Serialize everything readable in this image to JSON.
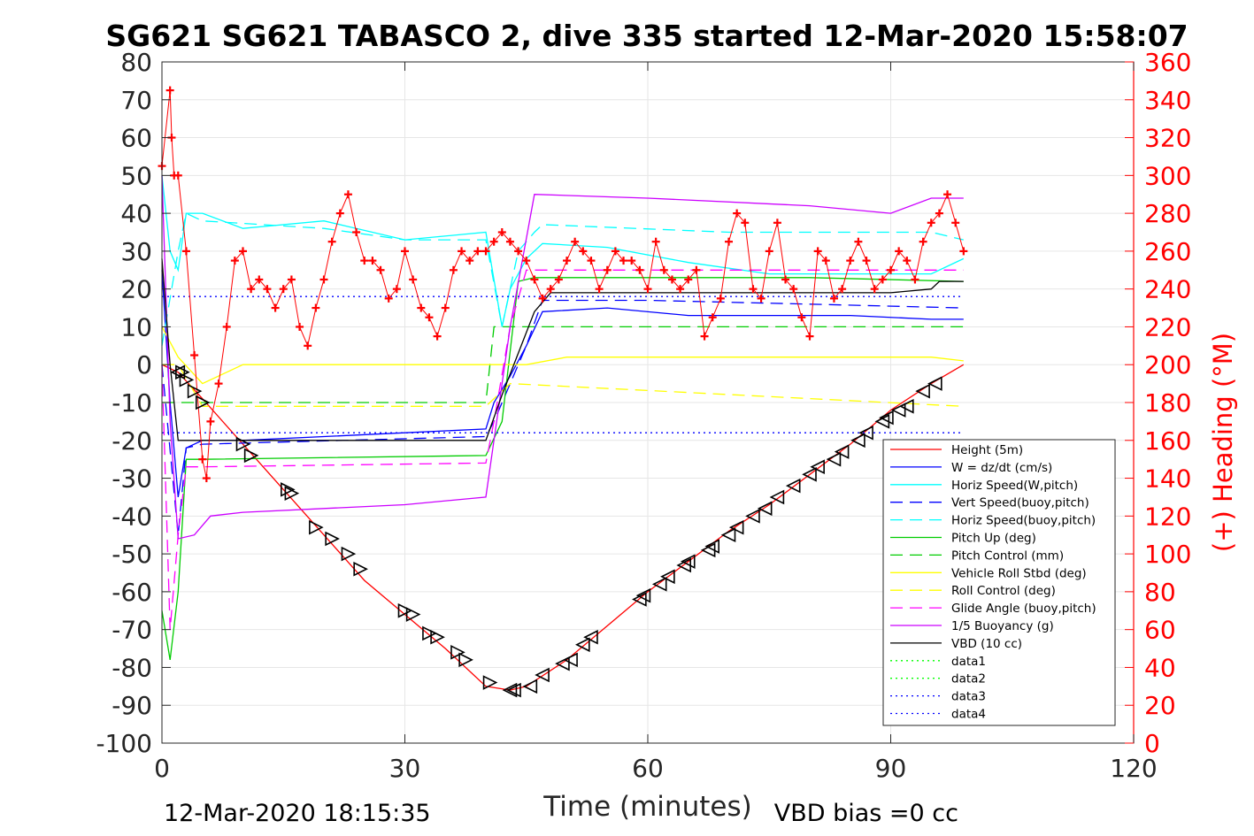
{
  "chart_data": {
    "type": "line",
    "title": "SG621 SG621 TABASCO 2, dive 335 started 12-Mar-2020 15:58:07",
    "xlabel": "Time (minutes)",
    "ylabel_right": "(+) Heading (°M)",
    "xlim": [
      0,
      120
    ],
    "ylim_left": [
      -100,
      80
    ],
    "ylim_right": [
      0,
      360
    ],
    "xticks": [
      "0",
      "30",
      "60",
      "90",
      "120"
    ],
    "yticks_left": [
      "80",
      "70",
      "60",
      "50",
      "40",
      "30",
      "20",
      "10",
      "0",
      "-10",
      "-20",
      "-30",
      "-40",
      "-50",
      "-60",
      "-70",
      "-80",
      "-90",
      "-100"
    ],
    "yticks_right": [
      "360",
      "340",
      "320",
      "300",
      "280",
      "260",
      "240",
      "220",
      "200",
      "180",
      "160",
      "140",
      "120",
      "100",
      "80",
      "60",
      "40",
      "20",
      "0"
    ],
    "grid": true,
    "legend_position": "lower-right",
    "footer_left": "12-Mar-2020 18:15:35",
    "footer_right": "VBD bias =0 cc",
    "series": [
      {
        "name": "Height (5m)",
        "color": "#ff0000",
        "style": "solid",
        "axis": "left",
        "x": [
          0,
          2,
          5,
          10,
          15,
          20,
          25,
          30,
          35,
          40,
          43,
          45,
          50,
          55,
          60,
          65,
          70,
          75,
          80,
          85,
          90,
          95,
          99
        ],
        "values": [
          0,
          -2,
          -9,
          -21,
          -33,
          -45,
          -57,
          -66,
          -75,
          -85,
          -86,
          -85,
          -78,
          -69,
          -60,
          -52,
          -44,
          -37,
          -29,
          -21,
          -12,
          -5,
          0
        ]
      },
      {
        "name": "W = dz/dt (cm/s)",
        "color": "#0000ff",
        "style": "solid",
        "axis": "left",
        "x": [
          0,
          1,
          2,
          3,
          5,
          10,
          20,
          30,
          40,
          41,
          43,
          45,
          47,
          55,
          65,
          75,
          85,
          95,
          99
        ],
        "values": [
          25,
          -10,
          -35,
          -22,
          -20,
          -20,
          -19,
          -18,
          -17,
          -10,
          -3,
          5,
          14,
          15,
          13,
          13,
          13,
          12,
          12
        ]
      },
      {
        "name": "Horiz Speed(W,pitch)",
        "color": "#00ffff",
        "style": "solid",
        "axis": "left",
        "x": [
          0,
          1,
          2,
          3,
          5,
          10,
          20,
          30,
          40,
          42,
          43,
          45,
          47,
          55,
          65,
          75,
          85,
          95,
          99
        ],
        "values": [
          50,
          30,
          25,
          40,
          40,
          36,
          38,
          33,
          35,
          10,
          20,
          28,
          32,
          31,
          27,
          24,
          24,
          24,
          28
        ]
      },
      {
        "name": "Vert Speed(buoy,pitch)",
        "color": "#0000ff",
        "style": "dashed",
        "axis": "left",
        "x": [
          0,
          2,
          3,
          5,
          40,
          41,
          43,
          45,
          47,
          60,
          80,
          99
        ],
        "values": [
          0,
          -45,
          -22,
          -21,
          -19,
          -15,
          -5,
          5,
          17,
          17,
          16,
          15
        ]
      },
      {
        "name": "Horiz Speed(buoy,pitch)",
        "color": "#00ffff",
        "style": "dashed",
        "axis": "left",
        "x": [
          0,
          2,
          3,
          5,
          20,
          30,
          40,
          42,
          44,
          46,
          47,
          70,
          95,
          99
        ],
        "values": [
          5,
          30,
          40,
          38,
          36,
          33,
          33,
          10,
          30,
          35,
          37,
          35,
          35,
          33
        ]
      },
      {
        "name": "Pitch Up (deg)",
        "color": "#00cc00",
        "style": "solid",
        "axis": "left",
        "x": [
          0,
          1,
          2,
          3,
          5,
          40,
          42,
          44,
          46,
          60,
          80,
          99
        ],
        "values": [
          -65,
          -78,
          -60,
          -25,
          -25,
          -24,
          -15,
          22,
          23,
          23,
          23,
          22
        ]
      },
      {
        "name": "Pitch Control (mm)",
        "color": "#00cc00",
        "style": "dashed",
        "axis": "left",
        "x": [
          0,
          2,
          3,
          40,
          41,
          43,
          99
        ],
        "values": [
          -10,
          -10,
          -10,
          -10,
          10,
          10,
          10
        ]
      },
      {
        "name": "Vehicle Roll Stbd (deg)",
        "color": "#ffff00",
        "style": "solid",
        "axis": "left",
        "x": [
          0,
          2,
          5,
          10,
          15,
          20,
          25,
          30,
          35,
          40,
          45,
          50,
          55,
          60,
          65,
          70,
          75,
          80,
          85,
          90,
          95,
          99
        ],
        "values": [
          10,
          2,
          -5,
          0,
          0,
          0,
          0,
          0,
          0,
          0,
          0,
          2,
          2,
          2,
          2,
          2,
          2,
          2,
          2,
          2,
          2,
          1
        ]
      },
      {
        "name": "Roll Control (deg)",
        "color": "#ffff00",
        "style": "dashed",
        "axis": "left",
        "x": [
          0,
          2,
          5,
          40,
          43,
          99
        ],
        "values": [
          0,
          0,
          -11,
          -11,
          -5,
          -11
        ]
      },
      {
        "name": "Glide Angle (buoy,pitch)",
        "color": "#ff00ff",
        "style": "dashed",
        "axis": "left",
        "x": [
          0,
          1,
          2,
          3,
          5,
          40,
          41,
          43,
          45,
          99
        ],
        "values": [
          0,
          -70,
          -45,
          -27,
          -27,
          -26,
          -15,
          10,
          25,
          25
        ]
      },
      {
        "name": "1/5 Buoyancy (g)",
        "color": "#cc00ff",
        "style": "solid",
        "axis": "left",
        "x": [
          0,
          1,
          2,
          4,
          6,
          10,
          20,
          30,
          40,
          43,
          46,
          60,
          80,
          90,
          95,
          99
        ],
        "values": [
          50,
          -15,
          -46,
          -45,
          -40,
          -39,
          -38,
          -37,
          -35,
          10,
          45,
          44,
          42,
          40,
          44,
          44
        ]
      },
      {
        "name": "VBD (10 cc)",
        "color": "#000000",
        "style": "solid",
        "axis": "left",
        "x": [
          0,
          1,
          2,
          40,
          42,
          44,
          46,
          48,
          90,
          95,
          96,
          99
        ],
        "values": [
          28,
          0,
          -20,
          -20,
          -8,
          3,
          14,
          19,
          19,
          20,
          22,
          22
        ]
      },
      {
        "name": "data1",
        "color": "#00ff00",
        "style": "dotted",
        "axis": "left",
        "x": [],
        "values": []
      },
      {
        "name": "data2",
        "color": "#00ff00",
        "style": "dotted",
        "axis": "left",
        "x": [],
        "values": []
      },
      {
        "name": "data3",
        "color": "#0000ff",
        "style": "dotted",
        "axis": "left",
        "x": [
          0,
          99
        ],
        "values": [
          18,
          18
        ]
      },
      {
        "name": "data4",
        "color": "#0000ff",
        "style": "dotted",
        "axis": "left",
        "x": [
          0,
          99
        ],
        "values": [
          -18,
          -18
        ]
      }
    ],
    "heading": {
      "name": "(+) Heading",
      "axis": "right",
      "color": "#ff0000",
      "x": [
        0,
        1,
        1.2,
        1.5,
        2,
        3,
        4,
        5,
        5.5,
        6,
        7,
        8,
        9,
        10,
        11,
        12,
        13,
        14,
        15,
        16,
        17,
        18,
        19,
        20,
        21,
        22,
        23,
        24,
        25,
        26,
        27,
        28,
        29,
        30,
        31,
        32,
        33,
        34,
        35,
        36,
        37,
        38,
        39,
        40,
        41,
        42,
        43,
        44,
        45,
        46,
        47,
        48,
        49,
        50,
        51,
        52,
        53,
        54,
        55,
        56,
        57,
        58,
        59,
        60,
        61,
        62,
        63,
        64,
        65,
        66,
        67,
        68,
        69,
        70,
        71,
        72,
        73,
        74,
        75,
        76,
        77,
        78,
        79,
        80,
        81,
        82,
        83,
        84,
        85,
        86,
        87,
        88,
        89,
        90,
        91,
        92,
        93,
        94,
        95,
        96,
        97,
        98,
        99
      ],
      "values": [
        305,
        345,
        320,
        300,
        300,
        260,
        205,
        150,
        140,
        170,
        190,
        220,
        255,
        260,
        240,
        245,
        240,
        230,
        240,
        245,
        220,
        210,
        230,
        245,
        265,
        280,
        290,
        270,
        255,
        255,
        250,
        235,
        240,
        260,
        245,
        230,
        225,
        215,
        230,
        250,
        260,
        255,
        260,
        260,
        265,
        270,
        265,
        260,
        255,
        245,
        235,
        240,
        245,
        255,
        265,
        260,
        255,
        240,
        250,
        260,
        255,
        255,
        250,
        240,
        265,
        250,
        245,
        240,
        245,
        250,
        215,
        225,
        235,
        265,
        280,
        275,
        240,
        235,
        260,
        275,
        245,
        240,
        225,
        215,
        260,
        255,
        235,
        240,
        255,
        265,
        255,
        240,
        245,
        250,
        260,
        255,
        245,
        265,
        275,
        280,
        290,
        275,
        260
      ]
    },
    "markers": {
      "name": "Height samples",
      "axis": "left",
      "color": "#000000",
      "x": [
        2,
        2.5,
        3,
        4,
        5,
        10,
        11,
        15.5,
        16,
        19,
        21,
        23,
        24.5,
        30,
        31,
        33,
        34,
        36.5,
        37.5,
        40.5,
        43,
        43.5,
        45.5,
        47,
        49.5,
        50.5,
        52,
        53,
        59,
        59.5,
        61.5,
        62.5,
        64.5,
        65,
        67.5,
        68,
        70,
        71,
        73,
        74.5,
        76,
        78,
        80,
        81,
        83,
        84,
        86,
        87,
        89,
        89.5,
        91,
        92,
        94,
        95.5
      ],
      "values": [
        -2,
        -2,
        -4,
        -7,
        -10,
        -21,
        -24,
        -33,
        -34,
        -43,
        -46,
        -50,
        -54,
        -65,
        -66,
        -71,
        -72,
        -76,
        -78,
        -84,
        -86,
        -86,
        -85,
        -82,
        -79,
        -78,
        -74,
        -72,
        -62,
        -61,
        -58,
        -56,
        -53,
        -52,
        -49,
        -48,
        -45,
        -43,
        -40,
        -38,
        -35,
        -32,
        -29,
        -27,
        -25,
        -23,
        -20,
        -18,
        -15,
        -14,
        -12,
        -11,
        -7,
        -5
      ]
    }
  }
}
